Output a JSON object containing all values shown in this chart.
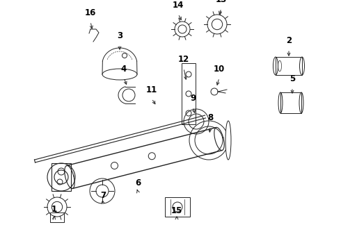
{
  "bg_color": "#ffffff",
  "line_color": "#222222",
  "label_color": "#000000",
  "label_fontsize": 8.5,
  "label_fontweight": "bold",
  "figw": 4.9,
  "figh": 3.6,
  "dpi": 100
}
